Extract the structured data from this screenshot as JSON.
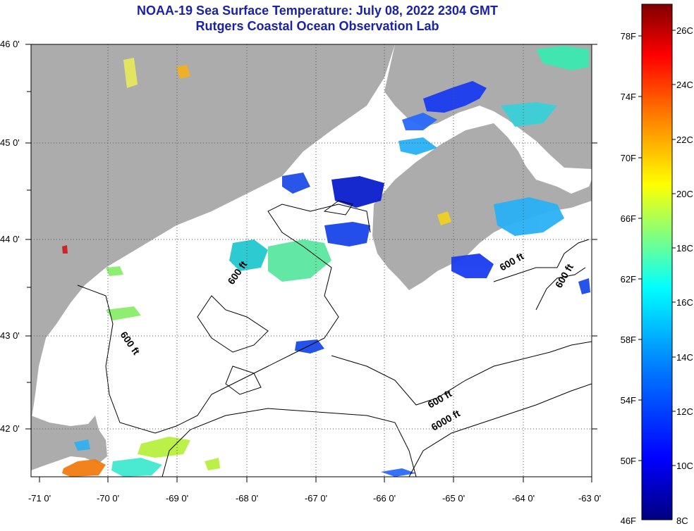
{
  "title_line1": "NOAA-19 Sea Surface Temperature:  July 08, 2022 2304 GMT",
  "title_line2": "Rutgers Coastal Ocean Observation Lab",
  "lat_labels": [
    "46 0'",
    "45 0'",
    "44 0'",
    "43 0'",
    "42 0'"
  ],
  "lon_labels": [
    "-71 0'",
    "-70 0'",
    "-69 0'",
    "-68 0'",
    "-67 0'",
    "-66 0'",
    "-65 0'",
    "-64 0'",
    "-63 0'"
  ],
  "contour_labels": [
    "600 ft",
    "600 ft",
    "600 ft",
    "600 ft",
    "600 ft",
    "6000 ft"
  ],
  "colorbar": {
    "fahrenheit": [
      "78F",
      "74F",
      "70F",
      "66F",
      "62F",
      "58F",
      "54F",
      "50F",
      "46F"
    ],
    "celsius": [
      "26C",
      "24C",
      "22C",
      "20C",
      "18C",
      "16C",
      "14C",
      "12C",
      "10C",
      "8C"
    ],
    "colors": [
      "#00007f",
      "#0000ff",
      "#0080ff",
      "#00ffff",
      "#80ff80",
      "#ffff00",
      "#ff8000",
      "#ff0000",
      "#7f0000"
    ]
  },
  "colors": {
    "land": "#acacac",
    "title": "#1a22a8",
    "ocean": "#ffffff"
  }
}
